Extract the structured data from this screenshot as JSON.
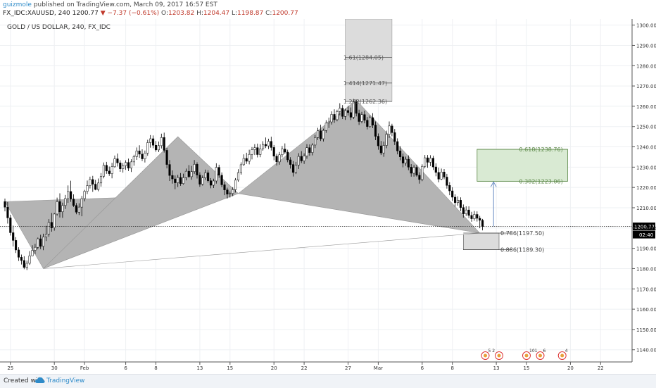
{
  "header": {
    "user": "guizmole",
    "published": "published on TradingView.com, March 09, 2017 16:57 EST",
    "symbol": "FX_IDC:XAUUSD, 240",
    "last": "1200.77",
    "change": "▼ −7.37 (−0.61%)",
    "o_label": "O:",
    "o": "1203.82",
    "h_label": "H:",
    "h": "1204.47",
    "l_label": "L:",
    "l": "1198.87",
    "c_label": "C:",
    "c": "1200.77"
  },
  "footer": {
    "created_with": "Created with",
    "brand": "TradingView"
  },
  "colors": {
    "up": "#ffffff",
    "down": "#000000",
    "pattern": "#b4b4b4",
    "fib_box": "#dcdcdc",
    "target_box": "#d9ead3",
    "target_line": "#5e8a4a",
    "arrow": "#6d8fc4",
    "grid": "#eef0f3"
  },
  "chart_data": {
    "type": "candlestick",
    "title": "GOLD / US DOLLAR, 240, FX_IDC",
    "xlabel": "",
    "ylabel": "",
    "ylim": [
      1134,
      1303
    ],
    "grid": true,
    "y_ticks": [
      1140,
      1150,
      1160,
      1170,
      1180,
      1190,
      1200,
      1210,
      1220,
      1230,
      1240,
      1250,
      1260,
      1270,
      1280,
      1290,
      1300
    ],
    "y_tick_labels": [
      "1140.00",
      "1150.00",
      "1160.00",
      "1170.00",
      "1180.00",
      "1190.00",
      "1200.00",
      "1210.00",
      "1220.00",
      "1230.00",
      "1240.00",
      "1250.00",
      "1260.00",
      "1270.00",
      "1280.00",
      "1290.00",
      "1300.00"
    ],
    "x_ticks": [
      {
        "bar": 2,
        "label": "25"
      },
      {
        "bar": 18,
        "label": "30"
      },
      {
        "bar": 29,
        "label": "Feb"
      },
      {
        "bar": 44,
        "label": "6"
      },
      {
        "bar": 55,
        "label": "8"
      },
      {
        "bar": 71,
        "label": "13"
      },
      {
        "bar": 82,
        "label": "15"
      },
      {
        "bar": 98,
        "label": "20"
      },
      {
        "bar": 109,
        "label": "22"
      },
      {
        "bar": 125,
        "label": "27"
      },
      {
        "bar": 136,
        "label": "Mar"
      },
      {
        "bar": 152,
        "label": "6"
      },
      {
        "bar": 163,
        "label": "8"
      },
      {
        "bar": 179,
        "label": "13"
      },
      {
        "bar": 190,
        "label": "15"
      },
      {
        "bar": 206,
        "label": "20"
      },
      {
        "bar": 217,
        "label": "22"
      }
    ],
    "last_price": {
      "value": 1200.77,
      "label": "1200.77",
      "countdown": "02:40"
    },
    "pattern_points": [
      {
        "bar": 0,
        "price": 1213
      },
      {
        "bar": 14,
        "price": 1180
      },
      {
        "bar": 63,
        "price": 1245
      },
      {
        "bar": 85,
        "price": 1217
      },
      {
        "bar": 128,
        "price": 1263
      },
      {
        "bar": 173,
        "price": 1197.5
      }
    ],
    "fib_levels": [
      {
        "value": 1284.05,
        "label": "1.61(1284.05)"
      },
      {
        "value": 1271.47,
        "label": "1.414(1271.47)"
      },
      {
        "value": 1262.36,
        "label": "1.272(1262.36)"
      },
      {
        "value": 1238.76,
        "label": "0.618(1238.76)"
      },
      {
        "value": 1223.06,
        "label": "0.382(1223.06)"
      },
      {
        "value": 1197.5,
        "label": "0.786(1197.50)"
      },
      {
        "value": 1189.3,
        "label": "0.886(1189.30)"
      }
    ],
    "extension_box": {
      "from_bar": 124,
      "to_bar": 141,
      "top": 1303,
      "bottom": 1262.36
    },
    "target_box": {
      "from_bar": 172,
      "to_bar": 205,
      "top": 1238.76,
      "bottom": 1223.06
    },
    "prz_box": {
      "from_bar": 167,
      "to_bar": 180,
      "top": 1197.5,
      "bottom": 1189.3
    },
    "arrow": {
      "bar": 178,
      "from": 1200.77,
      "to": 1223.06
    },
    "event_markers": [
      {
        "bar": 175,
        "label": "5 2"
      },
      {
        "bar": 180,
        "label": ""
      },
      {
        "bar": 190,
        "label": "101"
      },
      {
        "bar": 195,
        "label": "6"
      },
      {
        "bar": 203,
        "label": "4"
      }
    ],
    "ohlc": [
      [
        1213,
        1214.5,
        1208.2,
        1210.3
      ],
      [
        1210.3,
        1212.8,
        1202.2,
        1205.0
      ],
      [
        1205.0,
        1206.5,
        1196.3,
        1197.7
      ],
      [
        1197.7,
        1201.2,
        1190.9,
        1193.9
      ],
      [
        1193.9,
        1195.5,
        1187.7,
        1189.2
      ],
      [
        1189.2,
        1190.5,
        1183.8,
        1185.6
      ],
      [
        1185.6,
        1186.9,
        1182.0,
        1184.0
      ],
      [
        1184.0,
        1186.1,
        1179.7,
        1180.6
      ],
      [
        1180.6,
        1184.0,
        1179.3,
        1182.6
      ],
      [
        1182.6,
        1188.6,
        1181.8,
        1186.3
      ],
      [
        1186.3,
        1191.5,
        1186.1,
        1189.0
      ],
      [
        1189.0,
        1192.2,
        1187.1,
        1190.5
      ],
      [
        1190.5,
        1195.3,
        1189.5,
        1194.7
      ],
      [
        1194.7,
        1196.7,
        1189.6,
        1191.0
      ],
      [
        1191.0,
        1197.2,
        1189.1,
        1195.6
      ],
      [
        1195.6,
        1201.1,
        1193.6,
        1197.0
      ],
      [
        1197.0,
        1204.4,
        1195.7,
        1202.8
      ],
      [
        1202.8,
        1207.4,
        1198.2,
        1200.1
      ],
      [
        1200.1,
        1207.4,
        1198.7,
        1206.9
      ],
      [
        1206.9,
        1215.0,
        1206.1,
        1213.0
      ],
      [
        1213.0,
        1217.1,
        1205.2,
        1208.0
      ],
      [
        1208.0,
        1212.5,
        1205.0,
        1211.1
      ],
      [
        1211.1,
        1216.3,
        1209.4,
        1214.6
      ],
      [
        1214.6,
        1221.0,
        1212.4,
        1218.0
      ],
      [
        1218.0,
        1223.3,
        1212.9,
        1214.3
      ],
      [
        1214.3,
        1216.6,
        1210.4,
        1211.1
      ],
      [
        1211.1,
        1212.3,
        1206.8,
        1207.8
      ],
      [
        1207.8,
        1212.2,
        1206.4,
        1210.3
      ],
      [
        1210.3,
        1215.8,
        1205.8,
        1214.5
      ],
      [
        1214.5,
        1218.8,
        1213.1,
        1218.1
      ],
      [
        1218.1,
        1223.4,
        1216.7,
        1220.9
      ],
      [
        1220.9,
        1225.3,
        1219.5,
        1223.9
      ],
      [
        1223.9,
        1225.7,
        1217.8,
        1221.6
      ],
      [
        1221.6,
        1223.7,
        1218.6,
        1219.0
      ],
      [
        1219.0,
        1224.4,
        1218.1,
        1222.2
      ],
      [
        1222.2,
        1227.1,
        1220.4,
        1225.5
      ],
      [
        1225.5,
        1232.3,
        1224.5,
        1230.9
      ],
      [
        1230.9,
        1232.6,
        1226.7,
        1228.1
      ],
      [
        1228.1,
        1230.3,
        1225.7,
        1226.8
      ],
      [
        1226.8,
        1232.1,
        1224.5,
        1230.2
      ],
      [
        1230.2,
        1235.7,
        1229.7,
        1234.1
      ],
      [
        1234.1,
        1236.7,
        1230.3,
        1232.1
      ],
      [
        1232.1,
        1233.4,
        1227.7,
        1229.2
      ],
      [
        1229.2,
        1232.0,
        1227.3,
        1230.7
      ],
      [
        1230.7,
        1233.4,
        1228.7,
        1232.3
      ],
      [
        1232.3,
        1234.2,
        1228.1,
        1229.5
      ],
      [
        1229.5,
        1233.9,
        1227.6,
        1232.6
      ],
      [
        1232.6,
        1236.1,
        1230.7,
        1235.2
      ],
      [
        1235.2,
        1239.7,
        1233.6,
        1238.0
      ],
      [
        1238.0,
        1240.8,
        1234.6,
        1236.4
      ],
      [
        1236.4,
        1238.8,
        1233.0,
        1234.1
      ],
      [
        1234.1,
        1238.2,
        1232.3,
        1236.9
      ],
      [
        1236.9,
        1243.5,
        1235.6,
        1242.1
      ],
      [
        1242.1,
        1245.8,
        1239.6,
        1244.0
      ],
      [
        1244.0,
        1245.6,
        1239.3,
        1240.8
      ],
      [
        1240.8,
        1242.9,
        1237.6,
        1238.5
      ],
      [
        1238.5,
        1242.6,
        1237.4,
        1240.6
      ],
      [
        1240.6,
        1246.5,
        1239.2,
        1244.6
      ],
      [
        1244.6,
        1247.0,
        1237.2,
        1238.3
      ],
      [
        1238.3,
        1239.5,
        1229.4,
        1231.3
      ],
      [
        1231.3,
        1233.5,
        1223.2,
        1225.9
      ],
      [
        1225.9,
        1228.4,
        1221.9,
        1224.2
      ],
      [
        1224.2,
        1225.9,
        1219.1,
        1222.3
      ],
      [
        1222.3,
        1226.2,
        1220.2,
        1224.9
      ],
      [
        1224.9,
        1227.1,
        1220.8,
        1221.9
      ],
      [
        1221.9,
        1226.8,
        1221.4,
        1224.8
      ],
      [
        1224.8,
        1229.3,
        1223.5,
        1228.0
      ],
      [
        1228.0,
        1231.0,
        1224.7,
        1225.3
      ],
      [
        1225.3,
        1230.6,
        1223.8,
        1227.8
      ],
      [
        1227.8,
        1233.5,
        1226.7,
        1231.4
      ],
      [
        1231.4,
        1232.4,
        1224.4,
        1226.1
      ],
      [
        1226.1,
        1227.5,
        1220.3,
        1221.6
      ],
      [
        1221.6,
        1225.9,
        1220.9,
        1224.7
      ],
      [
        1224.7,
        1228.8,
        1223.7,
        1227.2
      ],
      [
        1227.2,
        1228.5,
        1222.4,
        1223.3
      ],
      [
        1223.3,
        1224.6,
        1219.6,
        1221.1
      ],
      [
        1221.1,
        1224.3,
        1219.7,
        1223.2
      ],
      [
        1223.2,
        1231.9,
        1221.9,
        1229.9
      ],
      [
        1229.9,
        1231.2,
        1224.7,
        1226.0
      ],
      [
        1226.0,
        1227.4,
        1220.1,
        1221.3
      ],
      [
        1221.3,
        1222.8,
        1216.2,
        1218.8
      ],
      [
        1218.8,
        1219.9,
        1214.5,
        1216.7
      ],
      [
        1216.7,
        1218.0,
        1215.0,
        1217.0
      ],
      [
        1217.0,
        1220.1,
        1215.7,
        1218.9
      ],
      [
        1218.9,
        1224.6,
        1217.5,
        1223.6
      ],
      [
        1223.6,
        1229.0,
        1222.8,
        1227.3
      ],
      [
        1227.3,
        1232.4,
        1226.3,
        1231.2
      ],
      [
        1231.2,
        1236.3,
        1230.6,
        1234.3
      ],
      [
        1234.3,
        1237.1,
        1231.6,
        1232.9
      ],
      [
        1232.9,
        1238.6,
        1231.4,
        1236.3
      ],
      [
        1236.3,
        1239.9,
        1233.8,
        1238.6
      ],
      [
        1238.6,
        1241.3,
        1236.0,
        1239.6
      ],
      [
        1239.6,
        1241.6,
        1234.8,
        1236.2
      ],
      [
        1236.2,
        1241.3,
        1234.9,
        1239.0
      ],
      [
        1239.0,
        1242.8,
        1238.1,
        1241.2
      ],
      [
        1241.2,
        1244.6,
        1239.4,
        1240.5
      ],
      [
        1240.5,
        1244.0,
        1238.9,
        1242.7
      ],
      [
        1242.7,
        1245.0,
        1238.2,
        1239.7
      ],
      [
        1239.7,
        1240.9,
        1233.4,
        1235.4
      ],
      [
        1235.4,
        1236.6,
        1230.8,
        1232.6
      ],
      [
        1232.6,
        1237.5,
        1231.2,
        1236.1
      ],
      [
        1236.1,
        1240.4,
        1234.8,
        1238.9
      ],
      [
        1238.9,
        1241.7,
        1236.5,
        1237.4
      ],
      [
        1237.4,
        1238.6,
        1232.4,
        1233.6
      ],
      [
        1233.6,
        1234.9,
        1229.3,
        1231.3
      ],
      [
        1231.3,
        1233.0,
        1225.4,
        1227.4
      ],
      [
        1227.4,
        1232.6,
        1226.6,
        1231.0
      ],
      [
        1231.0,
        1236.9,
        1229.1,
        1235.3
      ],
      [
        1235.3,
        1237.9,
        1232.0,
        1233.1
      ],
      [
        1233.1,
        1236.8,
        1231.6,
        1235.5
      ],
      [
        1235.5,
        1241.3,
        1234.1,
        1239.6
      ],
      [
        1239.6,
        1241.2,
        1235.6,
        1237.2
      ],
      [
        1237.2,
        1241.8,
        1235.8,
        1240.9
      ],
      [
        1240.9,
        1245.9,
        1239.4,
        1244.6
      ],
      [
        1244.6,
        1249.4,
        1243.4,
        1247.9
      ],
      [
        1247.9,
        1250.9,
        1242.9,
        1244.0
      ],
      [
        1244.0,
        1249.0,
        1242.6,
        1248.1
      ],
      [
        1248.1,
        1253.1,
        1246.9,
        1251.7
      ],
      [
        1251.7,
        1254.4,
        1249.3,
        1252.3
      ],
      [
        1252.3,
        1257.5,
        1251.0,
        1256.0
      ],
      [
        1256.0,
        1258.5,
        1251.8,
        1253.4
      ],
      [
        1253.4,
        1258.3,
        1252.6,
        1257.4
      ],
      [
        1257.4,
        1261.5,
        1255.5,
        1259.0
      ],
      [
        1259.0,
        1260.6,
        1253.7,
        1255.0
      ],
      [
        1255.0,
        1258.8,
        1253.3,
        1257.9
      ],
      [
        1257.9,
        1260.2,
        1255.4,
        1256.9
      ],
      [
        1256.9,
        1259.4,
        1253.2,
        1254.6
      ],
      [
        1254.6,
        1263.6,
        1253.7,
        1262.1
      ],
      [
        1262.1,
        1263.2,
        1255.0,
        1256.5
      ],
      [
        1256.5,
        1258.3,
        1250.8,
        1252.5
      ],
      [
        1252.5,
        1257.3,
        1251.6,
        1255.9
      ],
      [
        1255.9,
        1257.8,
        1251.6,
        1253.1
      ],
      [
        1253.1,
        1254.7,
        1248.6,
        1250.0
      ],
      [
        1250.0,
        1255.4,
        1249.4,
        1254.4
      ],
      [
        1254.4,
        1256.6,
        1249.2,
        1250.7
      ],
      [
        1250.7,
        1252.5,
        1243.3,
        1245.2
      ],
      [
        1245.2,
        1246.6,
        1238.6,
        1240.5
      ],
      [
        1240.5,
        1242.9,
        1236.0,
        1237.0
      ],
      [
        1237.0,
        1242.6,
        1235.1,
        1240.7
      ],
      [
        1240.7,
        1248.0,
        1239.3,
        1246.2
      ],
      [
        1246.2,
        1252.5,
        1244.4,
        1250.3
      ],
      [
        1250.3,
        1251.4,
        1245.2,
        1247.0
      ],
      [
        1247.0,
        1248.8,
        1240.9,
        1242.6
      ],
      [
        1242.6,
        1244.2,
        1236.3,
        1238.0
      ],
      [
        1238.0,
        1240.3,
        1233.4,
        1235.1
      ],
      [
        1235.1,
        1236.7,
        1229.9,
        1232.0
      ],
      [
        1232.0,
        1235.2,
        1230.7,
        1233.9
      ],
      [
        1233.9,
        1235.8,
        1228.5,
        1230.0
      ],
      [
        1230.0,
        1231.5,
        1225.3,
        1227.0
      ],
      [
        1227.0,
        1231.0,
        1225.3,
        1229.9
      ],
      [
        1229.9,
        1231.2,
        1225.3,
        1226.0
      ],
      [
        1226.0,
        1227.5,
        1221.9,
        1223.9
      ],
      [
        1223.9,
        1231.4,
        1223.1,
        1230.4
      ],
      [
        1230.4,
        1236.0,
        1229.4,
        1234.6
      ],
      [
        1234.6,
        1236.0,
        1229.7,
        1232.4
      ],
      [
        1232.4,
        1235.9,
        1230.5,
        1234.4
      ],
      [
        1234.4,
        1235.6,
        1228.6,
        1230.1
      ],
      [
        1230.1,
        1231.9,
        1225.5,
        1227.4
      ],
      [
        1227.4,
        1229.8,
        1222.5,
        1224.1
      ],
      [
        1224.1,
        1229.3,
        1223.6,
        1227.6
      ],
      [
        1227.6,
        1229.1,
        1224.0,
        1225.1
      ],
      [
        1225.1,
        1226.7,
        1219.4,
        1221.0
      ],
      [
        1221.0,
        1222.6,
        1216.2,
        1218.3
      ],
      [
        1218.3,
        1220.1,
        1213.4,
        1215.2
      ],
      [
        1215.2,
        1216.6,
        1210.5,
        1212.5
      ],
      [
        1212.5,
        1215.6,
        1211.0,
        1213.7
      ],
      [
        1213.7,
        1215.1,
        1208.3,
        1210.1
      ],
      [
        1210.1,
        1211.6,
        1205.1,
        1207.0
      ],
      [
        1207.0,
        1210.7,
        1206.0,
        1208.9
      ],
      [
        1208.9,
        1210.7,
        1204.9,
        1206.2
      ],
      [
        1206.2,
        1208.0,
        1203.1,
        1204.6
      ],
      [
        1204.6,
        1208.4,
        1203.6,
        1206.7
      ],
      [
        1206.7,
        1208.2,
        1203.2,
        1204.8
      ],
      [
        1204.8,
        1206.0,
        1199.9,
        1203.8
      ],
      [
        1203.8,
        1204.47,
        1198.87,
        1200.77
      ]
    ]
  }
}
